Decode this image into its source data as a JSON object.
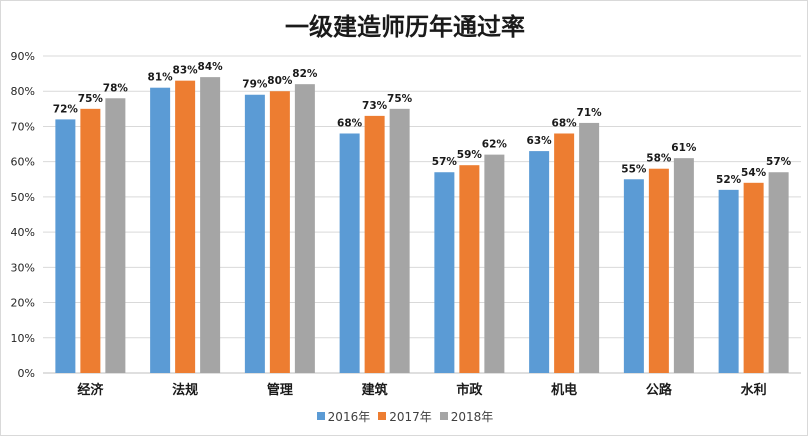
{
  "chart_data": {
    "type": "bar",
    "title": "一级建造师历年通过率",
    "categories": [
      "经济",
      "法规",
      "管理",
      "建筑",
      "市政",
      "机电",
      "公路",
      "水利"
    ],
    "series": [
      {
        "name": "2016年",
        "color": "#5b9bd5",
        "values": [
          72,
          81,
          79,
          68,
          57,
          63,
          55,
          52
        ]
      },
      {
        "name": "2017年",
        "color": "#ed7d31",
        "values": [
          75,
          83,
          80,
          73,
          59,
          68,
          58,
          54
        ]
      },
      {
        "name": "2018年",
        "color": "#a5a5a5",
        "values": [
          78,
          84,
          82,
          75,
          62,
          71,
          61,
          57
        ]
      }
    ],
    "yticks": [
      "0%",
      "10%",
      "20%",
      "30%",
      "40%",
      "50%",
      "60%",
      "70%",
      "80%",
      "90%"
    ],
    "ylim": [
      0,
      90
    ],
    "value_suffix": "%",
    "data_labels": true,
    "grid": true,
    "legend_position": "bottom"
  }
}
